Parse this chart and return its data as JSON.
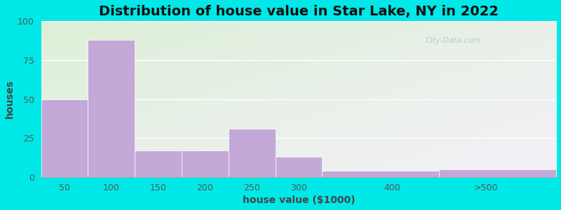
{
  "title": "Distribution of house value in Star Lake, NY in 2022",
  "xlabel": "house value ($1000)",
  "ylabel": "houses",
  "bar_labels": [
    "50",
    "100",
    "150",
    "200",
    "250",
    "300",
    "400",
    ">500"
  ],
  "bar_edges": [
    25,
    75,
    125,
    175,
    225,
    275,
    325,
    450,
    575
  ],
  "bar_values": [
    50,
    88,
    17,
    17,
    31,
    13,
    4,
    5
  ],
  "xtick_positions": [
    50,
    100,
    150,
    200,
    250,
    300,
    400,
    500
  ],
  "xtick_labels": [
    "50",
    "100",
    "150",
    "200",
    "250",
    "300",
    "400",
    ">500"
  ],
  "bar_color": "#c4a8d8",
  "ylim": [
    0,
    100
  ],
  "yticks": [
    0,
    25,
    50,
    75,
    100
  ],
  "background_outer": "#00e8e8",
  "background_top_left": "#ddf0d8",
  "background_bottom_right": "#f4f0f8",
  "grid_color": "#e8e8e8",
  "title_fontsize": 14,
  "axis_label_fontsize": 10,
  "tick_fontsize": 9,
  "watermark_text": "City-Data.com"
}
